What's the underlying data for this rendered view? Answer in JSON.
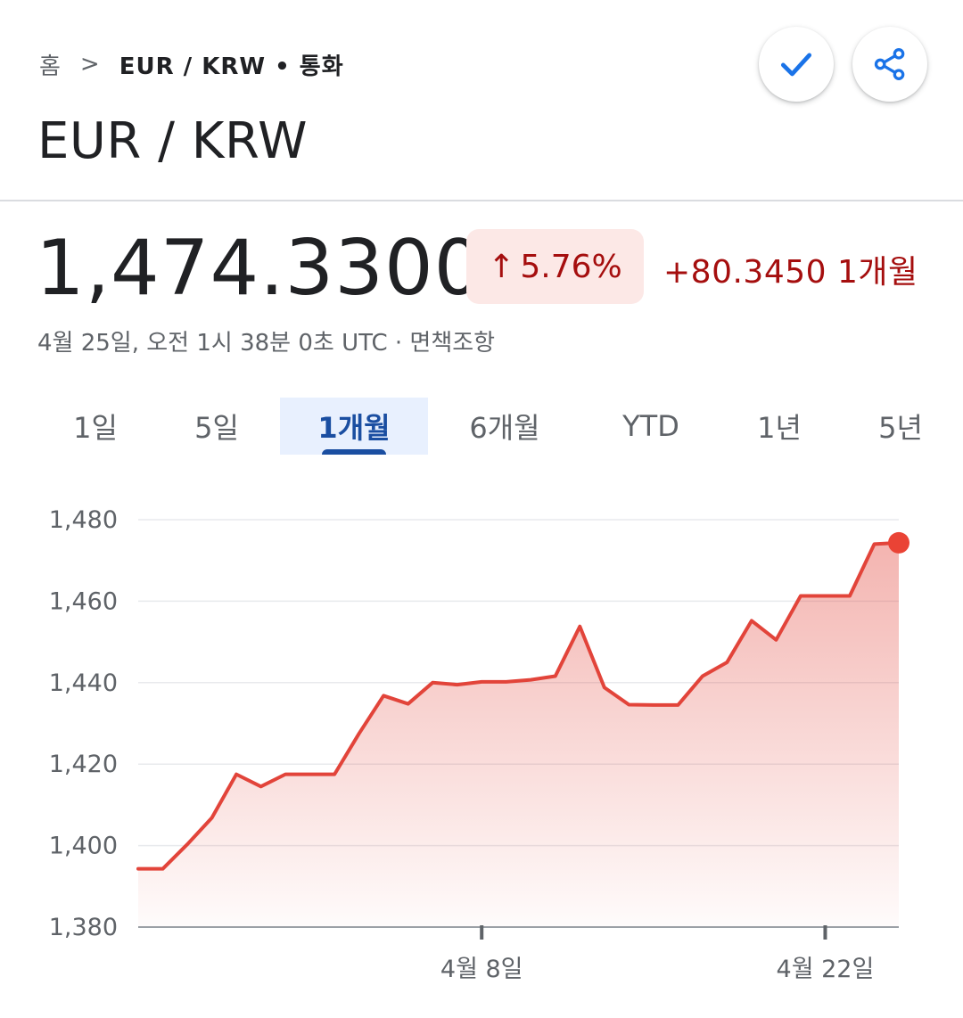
{
  "breadcrumb": {
    "home": "홈",
    "separator": ">",
    "current": "EUR / KRW • 통화"
  },
  "actions": {
    "follow_icon": "check-icon",
    "share_icon": "share-icon"
  },
  "title": "EUR / KRW",
  "quote": {
    "price": "1,474.3300",
    "change_percent": "5.76%",
    "change_arrow": "↑",
    "change_absolute": "+80.3450 1개월",
    "timestamp": "4월 25일, 오전 1시 38분 0초 UTC · 면책조항"
  },
  "tabs": [
    {
      "label": "1일",
      "active": false
    },
    {
      "label": "5일",
      "active": false
    },
    {
      "label": "1개월",
      "active": true
    },
    {
      "label": "6개월",
      "active": false
    },
    {
      "label": "YTD",
      "active": false
    },
    {
      "label": "1년",
      "active": false
    },
    {
      "label": "5년",
      "active": false
    }
  ],
  "colors": {
    "line": "#e2443a",
    "negative_text": "#a50e0e",
    "pill_bg": "#fce8e6",
    "active_tab": "#1a4ea1",
    "grid": "#e8eaed"
  },
  "chart_data": {
    "type": "area",
    "ylim": [
      1380,
      1480
    ],
    "yticks": [
      "1,480",
      "1,460",
      "1,440",
      "1,420",
      "1,400",
      "1,380"
    ],
    "ytick_values": [
      1480,
      1460,
      1440,
      1420,
      1400,
      1380
    ],
    "xtick_labels": [
      "4월 8일",
      "4월 22일"
    ],
    "xtick_index": [
      14,
      28
    ],
    "grid": true,
    "series": [
      {
        "values": [
          1394.3,
          1394.3,
          1400.3,
          1406.8,
          1417.5,
          1414.5,
          1417.5,
          1417.5,
          1417.5,
          1427.5,
          1436.8,
          1434.8,
          1440.0,
          1439.5,
          1440.2,
          1440.2,
          1440.7,
          1441.6,
          1453.8,
          1438.8,
          1434.6,
          1434.5,
          1434.5,
          1441.6,
          1445.0,
          1455.2,
          1450.5,
          1461.3,
          1461.3,
          1461.3,
          1474.0,
          1474.33
        ]
      }
    ]
  }
}
